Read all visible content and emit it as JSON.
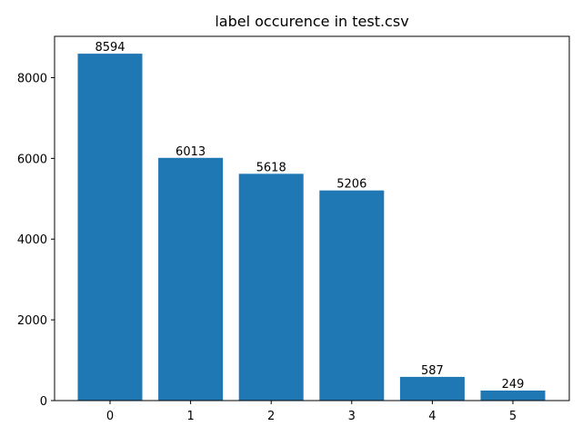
{
  "chart_data": {
    "type": "bar",
    "title": "label occurence in test.csv",
    "categories": [
      "0",
      "1",
      "2",
      "3",
      "4",
      "5"
    ],
    "values": [
      8594,
      6013,
      5618,
      5206,
      587,
      249
    ],
    "data_labels": [
      "8594",
      "6013",
      "5618",
      "5206",
      "587",
      "249"
    ],
    "yticks": [
      0,
      2000,
      4000,
      6000,
      8000
    ],
    "ytick_labels": [
      "0",
      "2000",
      "4000",
      "6000",
      "8000"
    ],
    "ylim": [
      0,
      9023.7
    ],
    "xlabel": "",
    "ylabel": "",
    "grid": false,
    "bar_color": "#1f77b4"
  }
}
